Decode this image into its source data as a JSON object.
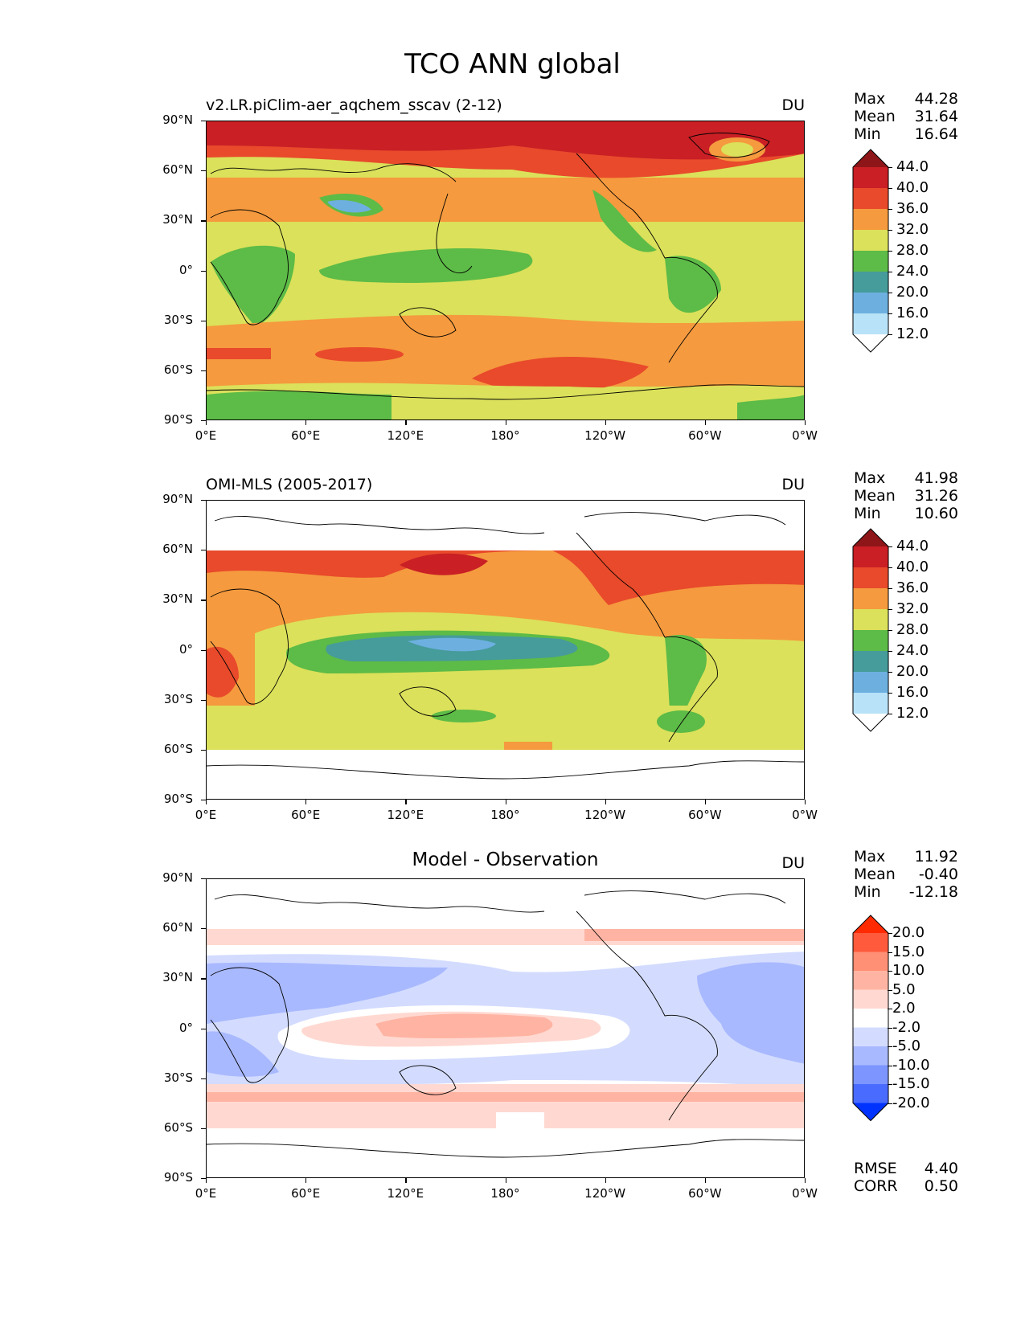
{
  "figure": {
    "title": "TCO ANN global"
  },
  "axes": {
    "lat_labels": [
      "90°N",
      "60°N",
      "30°N",
      "0°",
      "30°S",
      "60°S",
      "90°S"
    ],
    "lon_labels": [
      "0°E",
      "60°E",
      "120°E",
      "180°",
      "120°W",
      "60°W",
      "0°W"
    ]
  },
  "panels": [
    {
      "id": "model",
      "title": "v2.LR.piClim-aer_aqchem_sscav (2-12)",
      "units": "DU",
      "stats": {
        "max_label": "Max",
        "max": "44.28",
        "mean_label": "Mean",
        "mean": "31.64",
        "min_label": "Min",
        "min": "16.64"
      },
      "colorbar": {
        "labels": [
          "44.0",
          "40.0",
          "36.0",
          "32.0",
          "28.0",
          "24.0",
          "20.0",
          "16.0",
          "12.0"
        ],
        "colors_top_to_bottom": [
          "#8e1518",
          "#c91f25",
          "#e84a2b",
          "#f59a3e",
          "#dbe15a",
          "#5dbb47",
          "#469b9b",
          "#6db0e0",
          "#b8e2f7",
          "#ffffff"
        ]
      }
    },
    {
      "id": "obs",
      "title": "OMI-MLS (2005-2017)",
      "units": "DU",
      "stats": {
        "max_label": "Max",
        "max": "41.98",
        "mean_label": "Mean",
        "mean": "31.26",
        "min_label": "Min",
        "min": "10.60"
      },
      "colorbar": {
        "labels": [
          "44.0",
          "40.0",
          "36.0",
          "32.0",
          "28.0",
          "24.0",
          "20.0",
          "16.0",
          "12.0"
        ],
        "colors_top_to_bottom": [
          "#8e1518",
          "#c91f25",
          "#e84a2b",
          "#f59a3e",
          "#dbe15a",
          "#5dbb47",
          "#469b9b",
          "#6db0e0",
          "#b8e2f7",
          "#ffffff"
        ]
      }
    },
    {
      "id": "diff",
      "title": "Model - Observation",
      "units": "DU",
      "stats": {
        "max_label": "Max",
        "max": "11.92",
        "mean_label": "Mean",
        "mean": "-0.40",
        "min_label": "Min",
        "min": "-12.18",
        "rmse_label": "RMSE",
        "rmse": "4.40",
        "corr_label": "CORR",
        "corr": "0.50"
      },
      "colorbar": {
        "labels": [
          "20.0",
          "15.0",
          "10.0",
          "5.0",
          "2.0",
          "-2.0",
          "-5.0",
          "-10.0",
          "-15.0",
          "-20.0"
        ],
        "colors_top_to_bottom": [
          "#ff2a00",
          "#ff5a3c",
          "#ff8f75",
          "#ffb4a3",
          "#ffd9d1",
          "#ffffff",
          "#d3dcff",
          "#a9b9ff",
          "#7c95ff",
          "#4a6bff",
          "#0033ff"
        ]
      }
    }
  ]
}
